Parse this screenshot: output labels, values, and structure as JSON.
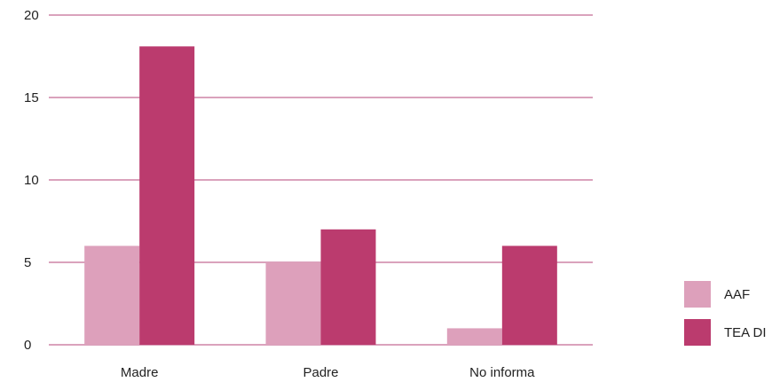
{
  "chart_data": {
    "type": "bar",
    "title": "",
    "xlabel": "",
    "ylabel": "",
    "categories": [
      "Madre",
      "Padre",
      "No informa"
    ],
    "series": [
      {
        "name": "AAF",
        "values": [
          6,
          5,
          1
        ],
        "color": "#dda0bb"
      },
      {
        "name": "TEA DI",
        "values": [
          18.1,
          7,
          6
        ],
        "color": "#bb3b6e"
      }
    ],
    "ylim": [
      0,
      20
    ],
    "yticks": [
      0,
      5,
      10,
      15,
      20
    ],
    "grid": true,
    "grid_color": "#b5457a",
    "legend_position": "bottom-right"
  }
}
